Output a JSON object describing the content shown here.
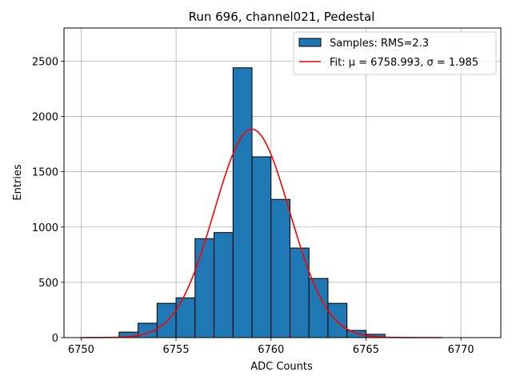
{
  "chart_data": {
    "type": "bar",
    "title": "Run 696, channel021, Pedestal",
    "xlabel": "ADC Counts",
    "ylabel": "Entries",
    "xlim": [
      6749.1,
      6772.1
    ],
    "ylim": [
      0,
      2800
    ],
    "xticks": [
      6750,
      6755,
      6760,
      6765,
      6770
    ],
    "yticks": [
      0,
      500,
      1000,
      1500,
      2000,
      2500
    ],
    "grid": true,
    "legend_position": "top-right",
    "histogram": {
      "name": "Samples: RMS=2.3",
      "color": "#1f77b4",
      "edge_color": "#000000",
      "bin_width": 1,
      "bins": [
        {
          "x0": 6752,
          "value": 50
        },
        {
          "x0": 6753,
          "value": 130
        },
        {
          "x0": 6754,
          "value": 310
        },
        {
          "x0": 6755,
          "value": 360
        },
        {
          "x0": 6756,
          "value": 895
        },
        {
          "x0": 6757,
          "value": 950
        },
        {
          "x0": 6758,
          "value": 2440
        },
        {
          "x0": 6759,
          "value": 1635
        },
        {
          "x0": 6760,
          "value": 1250
        },
        {
          "x0": 6761,
          "value": 810
        },
        {
          "x0": 6762,
          "value": 535
        },
        {
          "x0": 6763,
          "value": 310
        },
        {
          "x0": 6764,
          "value": 65
        },
        {
          "x0": 6765,
          "value": 30
        }
      ]
    },
    "fit": {
      "name": "Fit: μ = 6758.993, σ = 1.985",
      "color": "#ff0000",
      "mu": 6758.993,
      "sigma": 1.985,
      "amplitude": 1885,
      "x_range": [
        6750,
        6769
      ]
    }
  }
}
